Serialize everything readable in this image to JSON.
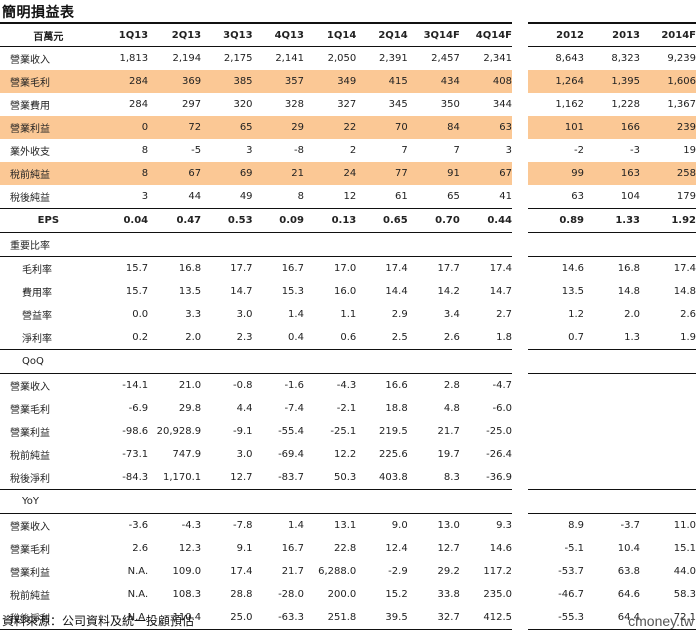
{
  "title": "簡明損益表",
  "unit_label": "百萬元",
  "quarter_columns": [
    "1Q13",
    "2Q13",
    "3Q13",
    "4Q13",
    "1Q14",
    "2Q14",
    "3Q14F",
    "4Q14F"
  ],
  "year_columns": [
    "2012",
    "2013",
    "2014F"
  ],
  "income_rows": [
    {
      "label": "營業收入",
      "highlight": false,
      "q": [
        "1,813",
        "2,194",
        "2,175",
        "2,141",
        "2,050",
        "2,391",
        "2,457",
        "2,341"
      ],
      "y": [
        "8,643",
        "8,323",
        "9,239"
      ]
    },
    {
      "label": "營業毛利",
      "highlight": true,
      "q": [
        "284",
        "369",
        "385",
        "357",
        "349",
        "415",
        "434",
        "408"
      ],
      "y": [
        "1,264",
        "1,395",
        "1,606"
      ]
    },
    {
      "label": "營業費用",
      "highlight": false,
      "q": [
        "284",
        "297",
        "320",
        "328",
        "327",
        "345",
        "350",
        "344"
      ],
      "y": [
        "1,162",
        "1,228",
        "1,367"
      ]
    },
    {
      "label": "營業利益",
      "highlight": true,
      "q": [
        "0",
        "72",
        "65",
        "29",
        "22",
        "70",
        "84",
        "63"
      ],
      "y": [
        "101",
        "166",
        "239"
      ]
    },
    {
      "label": "業外收支",
      "highlight": false,
      "q": [
        "8",
        "-5",
        "3",
        "-8",
        "2",
        "7",
        "7",
        "3"
      ],
      "y": [
        "-2",
        "-3",
        "19"
      ]
    },
    {
      "label": "稅前純益",
      "highlight": true,
      "q": [
        "8",
        "67",
        "69",
        "21",
        "24",
        "77",
        "91",
        "67"
      ],
      "y": [
        "99",
        "163",
        "258"
      ]
    },
    {
      "label": "稅後純益",
      "highlight": false,
      "q": [
        "3",
        "44",
        "49",
        "8",
        "12",
        "61",
        "65",
        "41"
      ],
      "y": [
        "63",
        "104",
        "179"
      ]
    }
  ],
  "eps_row": {
    "label": "EPS",
    "q": [
      "0.04",
      "0.47",
      "0.53",
      "0.09",
      "0.13",
      "0.65",
      "0.70",
      "0.44"
    ],
    "y": [
      "0.89",
      "1.33",
      "1.92"
    ]
  },
  "ratio_section": {
    "label": "重要比率",
    "rows": [
      {
        "label": "毛利率",
        "q": [
          "15.7",
          "16.8",
          "17.7",
          "16.7",
          "17.0",
          "17.4",
          "17.7",
          "17.4"
        ],
        "y": [
          "14.6",
          "16.8",
          "17.4"
        ]
      },
      {
        "label": "費用率",
        "q": [
          "15.7",
          "13.5",
          "14.7",
          "15.3",
          "16.0",
          "14.4",
          "14.2",
          "14.7"
        ],
        "y": [
          "13.5",
          "14.8",
          "14.8"
        ]
      },
      {
        "label": "營益率",
        "q": [
          "0.0",
          "3.3",
          "3.0",
          "1.4",
          "1.1",
          "2.9",
          "3.4",
          "2.7"
        ],
        "y": [
          "1.2",
          "2.0",
          "2.6"
        ]
      },
      {
        "label": "淨利率",
        "q": [
          "0.2",
          "2.0",
          "2.3",
          "0.4",
          "0.6",
          "2.5",
          "2.6",
          "1.8"
        ],
        "y": [
          "0.7",
          "1.3",
          "1.9"
        ]
      }
    ]
  },
  "qoq_section": {
    "label": "QoQ",
    "rows": [
      {
        "label": "營業收入",
        "q": [
          "-14.1",
          "21.0",
          "-0.8",
          "-1.6",
          "-4.3",
          "16.6",
          "2.8",
          "-4.7"
        ]
      },
      {
        "label": "營業毛利",
        "q": [
          "-6.9",
          "29.8",
          "4.4",
          "-7.4",
          "-2.1",
          "18.8",
          "4.8",
          "-6.0"
        ]
      },
      {
        "label": "營業利益",
        "q": [
          "-98.6",
          "20,928.9",
          "-9.1",
          "-55.4",
          "-25.1",
          "219.5",
          "21.7",
          "-25.0"
        ]
      },
      {
        "label": "稅前純益",
        "q": [
          "-73.1",
          "747.9",
          "3.0",
          "-69.4",
          "12.2",
          "225.6",
          "19.7",
          "-26.4"
        ]
      },
      {
        "label": "稅後淨利",
        "q": [
          "-84.3",
          "1,170.1",
          "12.7",
          "-83.7",
          "50.3",
          "403.8",
          "8.3",
          "-36.9"
        ]
      }
    ]
  },
  "yoy_section": {
    "label": "YoY",
    "rows": [
      {
        "label": "營業收入",
        "q": [
          "-3.6",
          "-4.3",
          "-7.8",
          "1.4",
          "13.1",
          "9.0",
          "13.0",
          "9.3"
        ],
        "y": [
          "8.9",
          "-3.7",
          "11.0"
        ]
      },
      {
        "label": "營業毛利",
        "q": [
          "2.6",
          "12.3",
          "9.1",
          "16.7",
          "22.8",
          "12.4",
          "12.7",
          "14.6"
        ],
        "y": [
          "-5.1",
          "10.4",
          "15.1"
        ]
      },
      {
        "label": "營業利益",
        "q": [
          "N.A.",
          "109.0",
          "17.4",
          "21.7",
          "6,288.0",
          "-2.9",
          "29.2",
          "117.2"
        ],
        "y": [
          "-53.7",
          "63.8",
          "44.0"
        ]
      },
      {
        "label": "稅前純益",
        "q": [
          "N.A.",
          "108.3",
          "28.8",
          "-28.0",
          "200.0",
          "15.2",
          "33.8",
          "235.0"
        ],
        "y": [
          "-46.7",
          "64.6",
          "58.3"
        ]
      },
      {
        "label": "稅後淨利",
        "q": [
          "N.A.",
          "110.4",
          "25.0",
          "-63.3",
          "251.8",
          "39.5",
          "32.7",
          "412.5"
        ],
        "y": [
          "-55.3",
          "64.4",
          "72.1"
        ]
      }
    ]
  },
  "footer": {
    "source": "資料來源：公司資料及統一投顧預估",
    "brand": "cmoney.tw"
  },
  "colors": {
    "highlight": "#fbc895",
    "rule": "#111111"
  }
}
